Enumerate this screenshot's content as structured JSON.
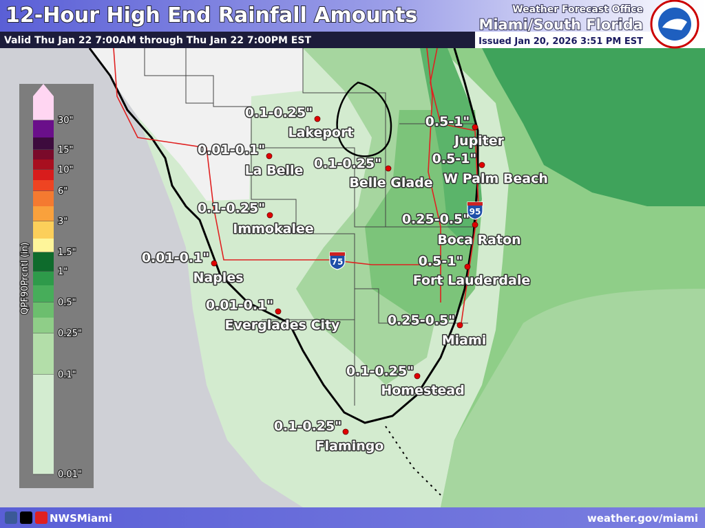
{
  "header": {
    "title": "12-Hour High End Rainfall Amounts",
    "valid": "Valid Thu Jan 22 7:00AM through Thu Jan 22 7:00PM EST",
    "office_label": "Weather Forecast Office",
    "office": "Miami/South Florida",
    "issued": "Issued Jan 20, 2026 3:51 PM EST"
  },
  "legend": {
    "title": "QPF90Prcntl (in)",
    "levels": [
      {
        "label": "30\"",
        "color": "#ffd6f2"
      },
      {
        "label": null,
        "color": "#6a0f8a"
      },
      {
        "label": "15\"",
        "color": "#3d0b3d"
      },
      {
        "label": null,
        "color": "#7a0a2a"
      },
      {
        "label": "10\"",
        "color": "#a80f1f"
      },
      {
        "label": null,
        "color": "#d81c1c"
      },
      {
        "label": "6\"",
        "color": "#ee4422"
      },
      {
        "label": null,
        "color": "#f47a30"
      },
      {
        "label": "3\"",
        "color": "#f9a13c"
      },
      {
        "label": null,
        "color": "#fccf5a"
      },
      {
        "label": "1.5\"",
        "color": "#fef59a"
      },
      {
        "label": "1\"",
        "color": "#0e6b2c"
      },
      {
        "label": null,
        "color": "#2e9a4a"
      },
      {
        "label": "0.5\"",
        "color": "#47ad5a"
      },
      {
        "label": null,
        "color": "#6cbe6e"
      },
      {
        "label": "0.25\"",
        "color": "#8fce88"
      },
      {
        "label": "0.1\"",
        "color": "#b3dea9"
      },
      {
        "label": "0.01\"",
        "color": "#d3ecd0"
      }
    ]
  },
  "cities": [
    {
      "name": "Lakeport",
      "amount": "0.1-0.25\""
    },
    {
      "name": "La Belle",
      "amount": "0.01-0.1\""
    },
    {
      "name": "Belle Glade",
      "amount": "0.1-0.25\""
    },
    {
      "name": "Jupiter",
      "amount": "0.5-1\""
    },
    {
      "name": "W Palm Beach",
      "amount": "0.5-1\""
    },
    {
      "name": "Immokalee",
      "amount": "0.1-0.25\""
    },
    {
      "name": "Boca Raton",
      "amount": "0.25-0.5\""
    },
    {
      "name": "Naples",
      "amount": "0.01-0.1\""
    },
    {
      "name": "Fort Lauderdale",
      "amount": "0.5-1\""
    },
    {
      "name": "Everglades City",
      "amount": "0.01-0.1\""
    },
    {
      "name": "Miami",
      "amount": "0.25-0.5\""
    },
    {
      "name": "Homestead",
      "amount": "0.1-0.25\""
    },
    {
      "name": "Flamingo",
      "amount": "0.1-0.25\""
    }
  ],
  "highways": [
    "75",
    "95"
  ],
  "footer": {
    "handle": "NWSMiami",
    "url": "weather.gov/miami"
  }
}
